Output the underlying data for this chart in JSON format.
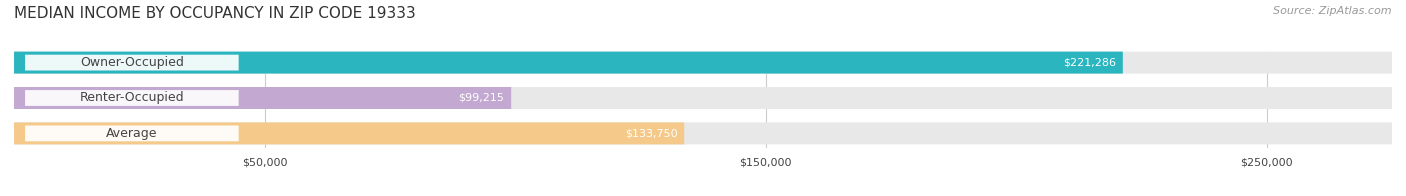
{
  "title": "MEDIAN INCOME BY OCCUPANCY IN ZIP CODE 19333",
  "source": "Source: ZipAtlas.com",
  "categories": [
    "Owner-Occupied",
    "Renter-Occupied",
    "Average"
  ],
  "values": [
    221286,
    99215,
    133750
  ],
  "labels": [
    "$221,286",
    "$99,215",
    "$133,750"
  ],
  "bar_colors": [
    "#2ab5bf",
    "#c3a8d1",
    "#f5c98a"
  ],
  "bar_bg_color": "#e8e8e8",
  "xlim_max": 275000,
  "xticks": [
    50000,
    150000,
    250000
  ],
  "xtick_labels": [
    "$50,000",
    "$150,000",
    "$250,000"
  ],
  "title_fontsize": 11,
  "source_fontsize": 8,
  "value_label_fontsize": 8,
  "category_fontsize": 9,
  "bar_height": 0.62,
  "fig_width": 14.06,
  "fig_height": 1.96,
  "background_color": "#ffffff",
  "grid_color": "#cccccc",
  "text_dark": "#444444",
  "text_light": "#ffffff",
  "source_color": "#999999",
  "rounding_size": 0.3
}
